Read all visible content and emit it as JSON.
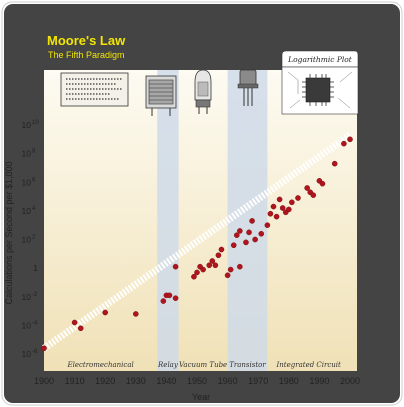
{
  "chart_data": {
    "type": "scatter",
    "title": "Moore's Law",
    "subtitle": "The Fifth Paradigm",
    "badge": "Logarithmic Plot",
    "xlabel": "Year",
    "ylabel": "Calculations per Second per $1,000",
    "xlim": [
      1900,
      2000
    ],
    "ylim": [
      -6,
      10
    ],
    "y_scale": "log10",
    "x_ticks": [
      1900,
      1910,
      1920,
      1930,
      1940,
      1950,
      1960,
      1970,
      1980,
      1990,
      2000
    ],
    "y_ticks": [
      {
        "exp": 10,
        "label": "10",
        "sup": "10"
      },
      {
        "exp": 8,
        "label": "10",
        "sup": "8"
      },
      {
        "exp": 6,
        "label": "10",
        "sup": "6"
      },
      {
        "exp": 4,
        "label": "10",
        "sup": "4"
      },
      {
        "exp": 2,
        "label": "10",
        "sup": "2"
      },
      {
        "exp": 0,
        "label": "1",
        "sup": ""
      },
      {
        "exp": -2,
        "label": "10",
        "sup": "-2"
      },
      {
        "exp": -4,
        "label": "10",
        "sup": "-4"
      },
      {
        "exp": -6,
        "label": "10",
        "sup": "-6"
      }
    ],
    "paradigms": [
      {
        "name": "Electromechanical",
        "start": 1900,
        "end": 1937,
        "highlight": false
      },
      {
        "name": "Relay",
        "start": 1937,
        "end": 1944,
        "highlight": true
      },
      {
        "name": "Vacuum Tube",
        "start": 1944,
        "end": 1960,
        "highlight": false
      },
      {
        "name": "Transistor",
        "start": 1960,
        "end": 1973,
        "highlight": true
      },
      {
        "name": "Integrated Circuit",
        "start": 1973,
        "end": 2000,
        "highlight": false
      }
    ],
    "trend": {
      "x": [
        1900,
        2000
      ],
      "y_exp": [
        -5.6,
        9.3
      ]
    },
    "points": [
      {
        "x": 1900,
        "y_exp": -5.6
      },
      {
        "x": 1910,
        "y_exp": -3.8
      },
      {
        "x": 1912,
        "y_exp": -4.2
      },
      {
        "x": 1920,
        "y_exp": -3.1
      },
      {
        "x": 1930,
        "y_exp": -3.2
      },
      {
        "x": 1939,
        "y_exp": -2.3
      },
      {
        "x": 1940,
        "y_exp": -1.9
      },
      {
        "x": 1941,
        "y_exp": -1.9
      },
      {
        "x": 1943,
        "y_exp": -2.1
      },
      {
        "x": 1943,
        "y_exp": 0.1
      },
      {
        "x": 1949,
        "y_exp": -0.6
      },
      {
        "x": 1950,
        "y_exp": -0.3
      },
      {
        "x": 1951,
        "y_exp": 0.1
      },
      {
        "x": 1952,
        "y_exp": -0.1
      },
      {
        "x": 1954,
        "y_exp": 0.2
      },
      {
        "x": 1955,
        "y_exp": 0.5
      },
      {
        "x": 1956,
        "y_exp": 0.2
      },
      {
        "x": 1957,
        "y_exp": 0.9
      },
      {
        "x": 1958,
        "y_exp": 1.3
      },
      {
        "x": 1960,
        "y_exp": -0.5
      },
      {
        "x": 1961,
        "y_exp": -0.1
      },
      {
        "x": 1962,
        "y_exp": 1.6
      },
      {
        "x": 1963,
        "y_exp": 2.3
      },
      {
        "x": 1964,
        "y_exp": 2.6
      },
      {
        "x": 1964,
        "y_exp": 0.1
      },
      {
        "x": 1966,
        "y_exp": 1.8
      },
      {
        "x": 1967,
        "y_exp": 2.5
      },
      {
        "x": 1968,
        "y_exp": 3.3
      },
      {
        "x": 1969,
        "y_exp": 2.0
      },
      {
        "x": 1971,
        "y_exp": 2.4
      },
      {
        "x": 1973,
        "y_exp": 3.0
      },
      {
        "x": 1974,
        "y_exp": 3.8
      },
      {
        "x": 1975,
        "y_exp": 4.3
      },
      {
        "x": 1976,
        "y_exp": 3.6
      },
      {
        "x": 1977,
        "y_exp": 4.8
      },
      {
        "x": 1978,
        "y_exp": 4.2
      },
      {
        "x": 1979,
        "y_exp": 3.9
      },
      {
        "x": 1980,
        "y_exp": 4.1
      },
      {
        "x": 1981,
        "y_exp": 4.6
      },
      {
        "x": 1983,
        "y_exp": 4.9
      },
      {
        "x": 1986,
        "y_exp": 5.6
      },
      {
        "x": 1987,
        "y_exp": 5.3
      },
      {
        "x": 1988,
        "y_exp": 5.1
      },
      {
        "x": 1990,
        "y_exp": 6.1
      },
      {
        "x": 1991,
        "y_exp": 5.9
      },
      {
        "x": 1995,
        "y_exp": 7.3
      },
      {
        "x": 1998,
        "y_exp": 8.7
      },
      {
        "x": 2000,
        "y_exp": 9.0
      }
    ]
  },
  "colors": {
    "frame": "#444444",
    "plot_top": "#fdfbf2",
    "plot_bottom": "#f0e1b6",
    "highlight_band": "#cfdbe9",
    "point": "#b0141c",
    "title": "#f2e600",
    "subtitle": "#f2e600",
    "axis_text": "#222222"
  },
  "icons": [
    "punch-card-icon",
    "relay-icon",
    "vacuum-tube-icon",
    "transistor-icon",
    "integrated-circuit-icon"
  ]
}
